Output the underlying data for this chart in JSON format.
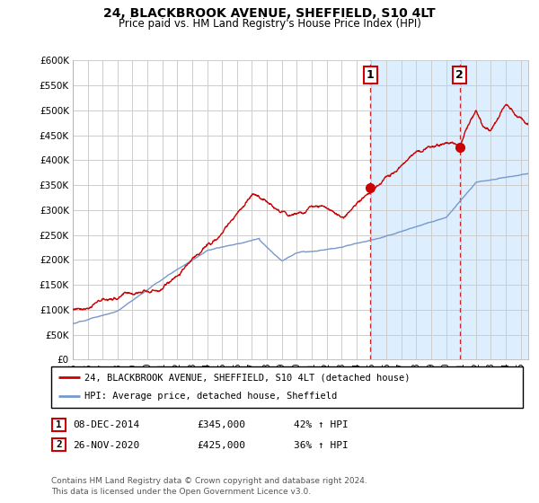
{
  "title": "24, BLACKBROOK AVENUE, SHEFFIELD, S10 4LT",
  "subtitle": "Price paid vs. HM Land Registry's House Price Index (HPI)",
  "ylim": [
    0,
    600000
  ],
  "yticks": [
    0,
    50000,
    100000,
    150000,
    200000,
    250000,
    300000,
    350000,
    400000,
    450000,
    500000,
    550000,
    600000
  ],
  "background_color": "#ffffff",
  "shaded_color": "#ddeeff",
  "red_color": "#cc0000",
  "blue_color": "#7799cc",
  "sale1_x": 2014.92,
  "sale1_y": 345000,
  "sale2_x": 2020.92,
  "sale2_y": 425000,
  "legend_line1": "24, BLACKBROOK AVENUE, SHEFFIELD, S10 4LT (detached house)",
  "legend_line2": "HPI: Average price, detached house, Sheffield",
  "table_row1": [
    "1",
    "08-DEC-2014",
    "£345,000",
    "42% ↑ HPI"
  ],
  "table_row2": [
    "2",
    "26-NOV-2020",
    "£425,000",
    "36% ↑ HPI"
  ],
  "footer": "Contains HM Land Registry data © Crown copyright and database right 2024.\nThis data is licensed under the Open Government Licence v3.0.",
  "xmin": 1995,
  "xmax": 2025.5
}
